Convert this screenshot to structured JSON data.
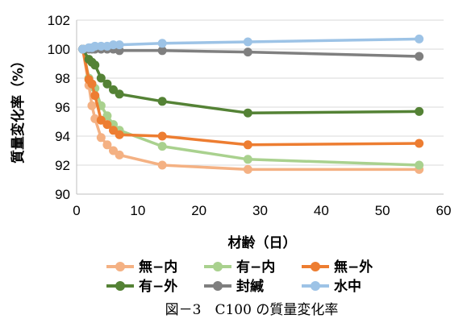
{
  "chart_data": {
    "type": "line",
    "title": "",
    "xlabel": "材齢（日）",
    "ylabel": "質量変化率（%）",
    "xlim": [
      0,
      60
    ],
    "ylim": [
      90,
      102
    ],
    "xticks": [
      "0",
      "10",
      "20",
      "30",
      "40",
      "50",
      "60"
    ],
    "yticks": [
      "90",
      "92",
      "94",
      "96",
      "98",
      "100",
      "102"
    ],
    "grid": "horizontal",
    "legend_position": "bottom",
    "caption": "図－3　C100 の質量変化率",
    "series": [
      {
        "name": "無−内",
        "color": "#f4b183",
        "x": [
          1,
          2,
          2.5,
          3,
          4,
          5,
          6,
          7,
          14,
          28,
          56
        ],
        "y": [
          100,
          97.5,
          96.1,
          95.2,
          93.9,
          93.4,
          93.0,
          92.7,
          92.0,
          91.7,
          91.7
        ]
      },
      {
        "name": "有−内",
        "color": "#a9d18e",
        "x": [
          1,
          2,
          2.5,
          3,
          4,
          5,
          6,
          7,
          14,
          28,
          56
        ],
        "y": [
          100,
          98.0,
          97.6,
          97.3,
          96.1,
          95.4,
          94.8,
          94.4,
          93.3,
          92.4,
          92.0
        ]
      },
      {
        "name": "無−外",
        "color": "#ed7d31",
        "x": [
          1,
          2,
          2.5,
          3,
          4,
          5,
          6,
          7,
          14,
          28,
          56
        ],
        "y": [
          100,
          97.9,
          97.6,
          96.8,
          95.1,
          94.8,
          94.4,
          94.1,
          94.0,
          93.4,
          93.5
        ]
      },
      {
        "name": "有−外",
        "color": "#548235",
        "x": [
          1,
          2,
          2.5,
          3,
          4,
          5,
          6,
          7,
          14,
          28,
          56
        ],
        "y": [
          100,
          99.3,
          99.1,
          98.9,
          98.0,
          97.6,
          97.2,
          96.9,
          96.4,
          95.6,
          95.7
        ]
      },
      {
        "name": "封緘",
        "color": "#7f7f7f",
        "x": [
          1,
          2,
          2.5,
          3,
          4,
          5,
          6,
          7,
          14,
          28,
          56
        ],
        "y": [
          100,
          100,
          100,
          100,
          100,
          100,
          100,
          99.9,
          99.9,
          99.8,
          99.5
        ]
      },
      {
        "name": "水中",
        "color": "#9dc3e6",
        "x": [
          1,
          2,
          2.5,
          3,
          4,
          5,
          6,
          7,
          14,
          28,
          56
        ],
        "y": [
          100,
          100.1,
          100.1,
          100.2,
          100.2,
          100.2,
          100.3,
          100.3,
          100.4,
          100.5,
          100.7
        ]
      }
    ]
  }
}
